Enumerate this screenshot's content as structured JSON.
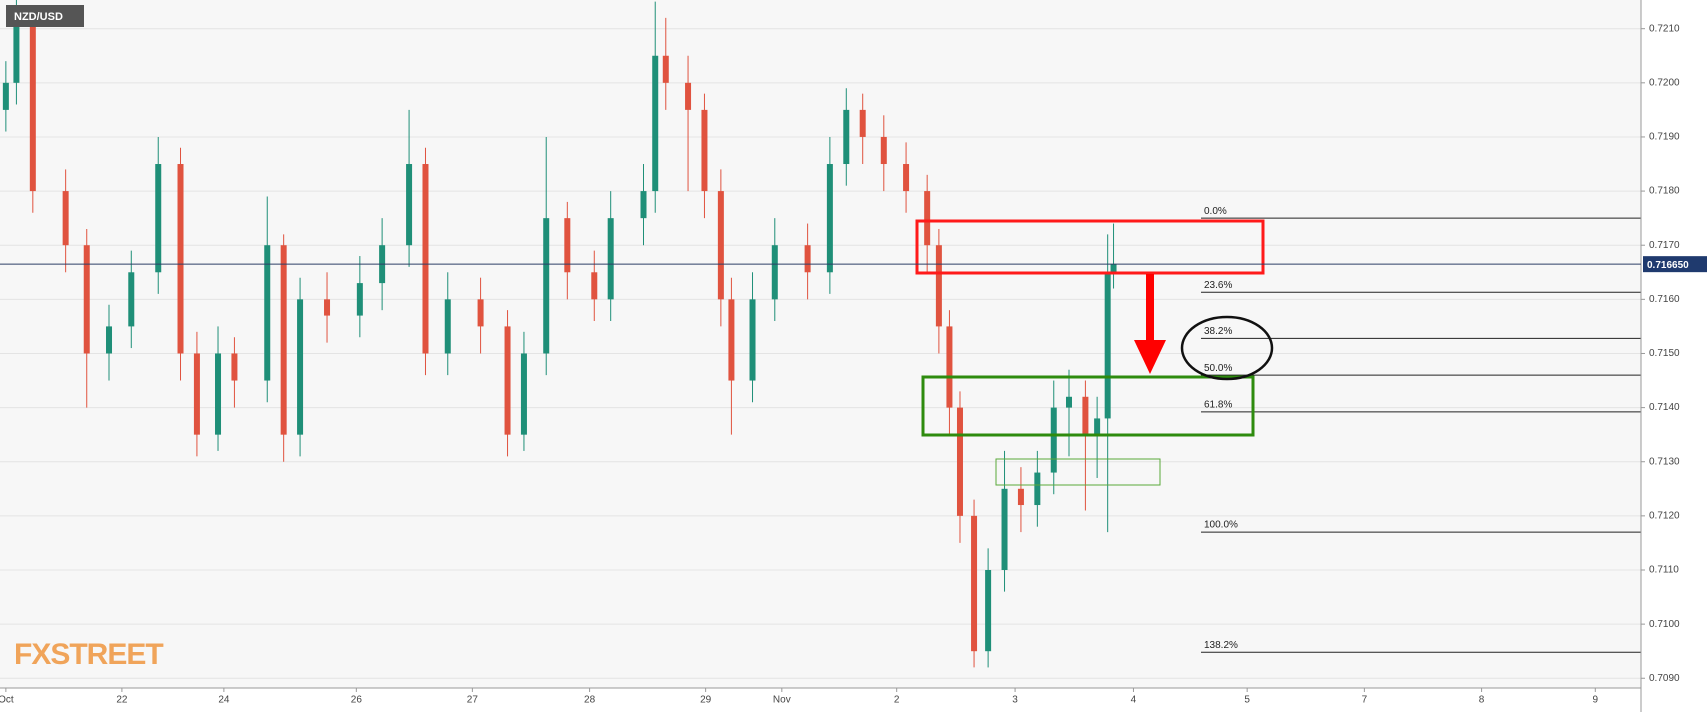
{
  "chart_data": {
    "type": "candlestick",
    "symbol": "NZD/USD",
    "watermark": "FXSTREET",
    "xlim": [
      0,
      140
    ],
    "xticks": [
      {
        "value": 0.5,
        "label": "Oct"
      },
      {
        "value": 10.4,
        "label": "22"
      },
      {
        "value": 19.1,
        "label": "24"
      },
      {
        "value": 30.4,
        "label": "26"
      },
      {
        "value": 40.3,
        "label": "27"
      },
      {
        "value": 50.3,
        "label": "28"
      },
      {
        "value": 60.2,
        "label": "29"
      },
      {
        "value": 66.7,
        "label": "Nov"
      },
      {
        "value": 76.5,
        "label": "2"
      },
      {
        "value": 86.6,
        "label": "3"
      },
      {
        "value": 96.7,
        "label": "4"
      },
      {
        "value": 106.4,
        "label": "5"
      },
      {
        "value": 116.4,
        "label": "7"
      },
      {
        "value": 126.4,
        "label": "8"
      },
      {
        "value": 136.1,
        "label": "9"
      }
    ],
    "ylim": [
      0.70882,
      0.72153
    ],
    "yticks": [
      {
        "value": 0.709,
        "label": "0.7090"
      },
      {
        "value": 0.71,
        "label": "0.7100"
      },
      {
        "value": 0.711,
        "label": "0.7110"
      },
      {
        "value": 0.712,
        "label": "0.7120"
      },
      {
        "value": 0.713,
        "label": "0.7130"
      },
      {
        "value": 0.714,
        "label": "0.7140"
      },
      {
        "value": 0.715,
        "label": "0.7150"
      },
      {
        "value": 0.716,
        "label": "0.7160"
      },
      {
        "value": 0.717,
        "label": "0.7170"
      },
      {
        "value": 0.718,
        "label": "0.7180"
      },
      {
        "value": 0.719,
        "label": "0.7190"
      },
      {
        "value": 0.72,
        "label": "0.7200"
      },
      {
        "value": 0.721,
        "label": "0.7210"
      }
    ],
    "grid": true,
    "up_color": "#1f8f78",
    "down_color": "#e0533f",
    "x": [
      0.5,
      1.4,
      2.8,
      5.6,
      7.4,
      9.3,
      11.2,
      13.5,
      15.4,
      16.8,
      18.6,
      20.0,
      22.8,
      24.2,
      25.6,
      27.9,
      30.7,
      32.6,
      34.9,
      36.3,
      38.2,
      41.0,
      43.3,
      44.7,
      46.6,
      48.4,
      50.7,
      52.1,
      54.9,
      55.9,
      56.8,
      58.7,
      60.1,
      61.5,
      62.4,
      64.2,
      66.1,
      68.9,
      70.8,
      72.2,
      73.6,
      75.4,
      77.3,
      79.1,
      80.1,
      81.0,
      81.9,
      83.1,
      84.3,
      85.7,
      87.1,
      88.5,
      89.9,
      91.2,
      92.6,
      93.6,
      94.5,
      95.0
    ],
    "open": [
      0.7195,
      0.72,
      0.7212,
      0.718,
      0.717,
      0.715,
      0.7155,
      0.7165,
      0.7185,
      0.715,
      0.7135,
      0.715,
      0.7145,
      0.717,
      0.7135,
      0.716,
      0.7157,
      0.7163,
      0.717,
      0.7185,
      0.715,
      0.716,
      0.7155,
      0.7135,
      0.715,
      0.7175,
      0.7165,
      0.716,
      0.7175,
      0.718,
      0.7205,
      0.72,
      0.7195,
      0.718,
      0.716,
      0.7145,
      0.716,
      0.717,
      0.7165,
      0.7185,
      0.7195,
      0.719,
      0.7185,
      0.718,
      0.717,
      0.7155,
      0.714,
      0.712,
      0.7095,
      0.711,
      0.7125,
      0.7122,
      0.7128,
      0.714,
      0.7142,
      0.7135,
      0.7138,
      0.7165
    ],
    "high": [
      0.7204,
      0.7216,
      0.7214,
      0.7184,
      0.7173,
      0.7159,
      0.7169,
      0.719,
      0.7188,
      0.7154,
      0.7155,
      0.7153,
      0.7179,
      0.7172,
      0.7164,
      0.7165,
      0.7168,
      0.7175,
      0.7195,
      0.7188,
      0.7165,
      0.7164,
      0.7158,
      0.7154,
      0.719,
      0.7178,
      0.7169,
      0.718,
      0.7185,
      0.7215,
      0.7212,
      0.7205,
      0.7198,
      0.7184,
      0.7164,
      0.7165,
      0.7175,
      0.7174,
      0.719,
      0.7199,
      0.7198,
      0.7194,
      0.7189,
      0.7183,
      0.7173,
      0.7158,
      0.7143,
      0.7123,
      0.7114,
      0.7132,
      0.7129,
      0.7132,
      0.7145,
      0.7147,
      0.7145,
      0.7142,
      0.7172,
      0.7174
    ],
    "low": [
      0.7191,
      0.7196,
      0.7176,
      0.7165,
      0.714,
      0.7145,
      0.7151,
      0.7161,
      0.7145,
      0.7131,
      0.7132,
      0.714,
      0.7141,
      0.713,
      0.7131,
      0.7152,
      0.7153,
      0.7158,
      0.7166,
      0.7146,
      0.7146,
      0.715,
      0.7131,
      0.7132,
      0.7146,
      0.716,
      0.7156,
      0.7156,
      0.717,
      0.7176,
      0.7195,
      0.718,
      0.7175,
      0.7155,
      0.7135,
      0.7141,
      0.7156,
      0.716,
      0.7161,
      0.7181,
      0.7185,
      0.718,
      0.7176,
      0.7165,
      0.715,
      0.7135,
      0.7115,
      0.7092,
      0.7092,
      0.7106,
      0.7117,
      0.7118,
      0.7124,
      0.7131,
      0.7121,
      0.7127,
      0.7117,
      0.7162
    ],
    "close": [
      0.72,
      0.7212,
      0.718,
      0.717,
      0.715,
      0.7155,
      0.7165,
      0.7185,
      0.715,
      0.7135,
      0.715,
      0.7145,
      0.717,
      0.7135,
      0.716,
      0.7157,
      0.7163,
      0.717,
      0.7185,
      0.715,
      0.716,
      0.7155,
      0.7135,
      0.715,
      0.7175,
      0.7165,
      0.716,
      0.7175,
      0.718,
      0.7205,
      0.72,
      0.7195,
      0.718,
      0.716,
      0.7145,
      0.716,
      0.717,
      0.7165,
      0.7185,
      0.7195,
      0.719,
      0.7185,
      0.718,
      0.717,
      0.7155,
      0.714,
      0.712,
      0.7095,
      0.711,
      0.7125,
      0.7122,
      0.7128,
      0.714,
      0.7142,
      0.7135,
      0.7138,
      0.7165,
      0.71665
    ],
    "last_price": {
      "value": 0.71665,
      "label": "0.716650"
    },
    "fib_levels": [
      {
        "label": "0.0%",
        "price": 0.7175
      },
      {
        "label": "23.6%",
        "price": 0.71613
      },
      {
        "label": "38.2%",
        "price": 0.71528
      },
      {
        "label": "50.0%",
        "price": 0.7146
      },
      {
        "label": "61.8%",
        "price": 0.71392
      },
      {
        "label": "100.0%",
        "price": 0.7117
      },
      {
        "label": "138.2%",
        "price": 0.70948
      }
    ]
  }
}
